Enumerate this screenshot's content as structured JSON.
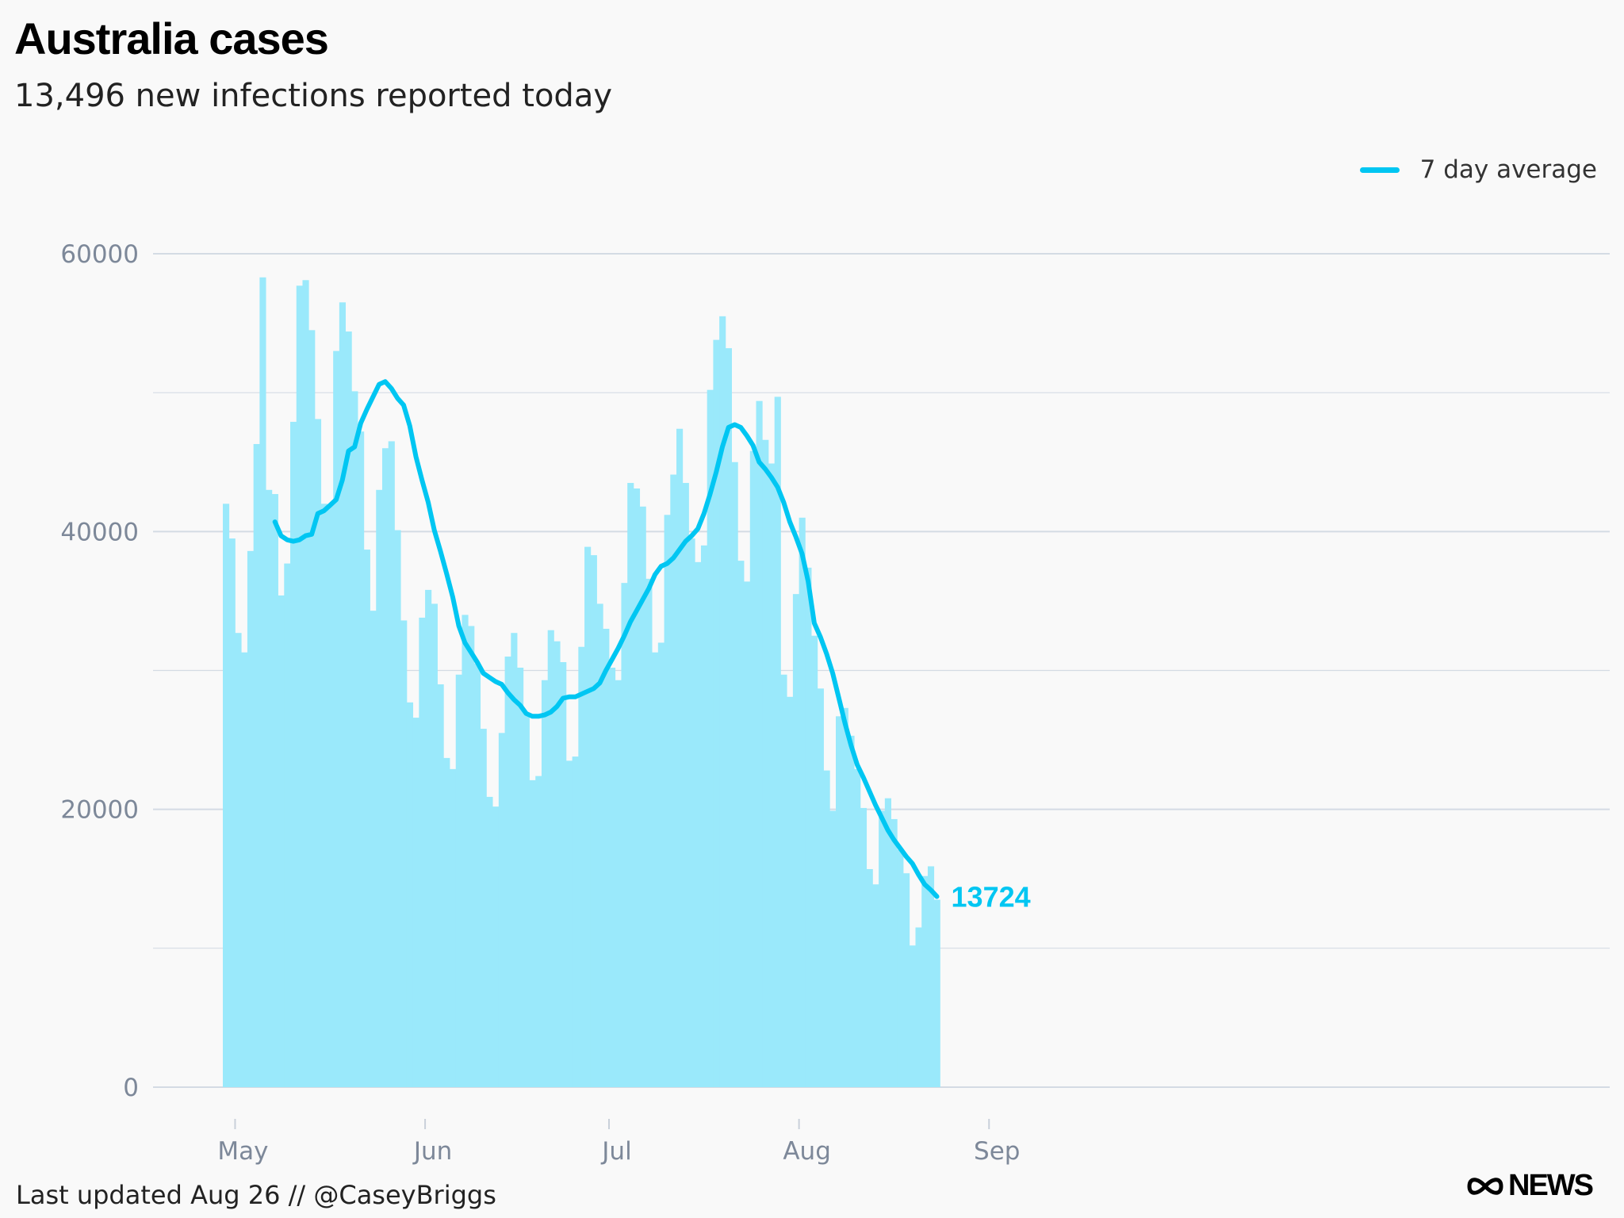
{
  "header": {
    "title": "Australia cases",
    "subtitle": "13,496 new infections reported today"
  },
  "legend": {
    "label": "7 day average",
    "placement": "top-right",
    "color": "#00c6f2"
  },
  "footer": {
    "text": "Last updated Aug 26 // @CaseyBriggs"
  },
  "logo": {
    "text": "NEWS",
    "icon": "abc-lissajous-icon"
  },
  "colors": {
    "bar": "#9ae9fb",
    "line": "#00c6f2",
    "grid": "#d4dbe4",
    "tick": "#7d8899"
  },
  "chart_data": {
    "type": "bar",
    "x_start": "2022-04-29",
    "ylim": [
      0,
      65000
    ],
    "yticks": [
      0,
      20000,
      40000,
      60000
    ],
    "grid": true,
    "x_ticks": [
      {
        "label": "May",
        "date": "2022-05-01"
      },
      {
        "label": "Jun",
        "date": "2022-06-01"
      },
      {
        "label": "Jul",
        "date": "2022-07-01"
      },
      {
        "label": "Aug",
        "date": "2022-08-01"
      },
      {
        "label": "Sep",
        "date": "2022-09-01"
      }
    ],
    "series": [
      {
        "name": "",
        "kind": "bar",
        "values": [
          42000,
          39500,
          32700,
          31300,
          38600,
          46300,
          58300,
          43000,
          42700,
          35400,
          37700,
          47900,
          57700,
          58100,
          54500,
          48100,
          42000,
          41900,
          53000,
          56500,
          54400,
          50100,
          47200,
          38700,
          34300,
          43000,
          46000,
          46500,
          40100,
          33600,
          27700,
          26600,
          33800,
          35800,
          34800,
          29000,
          23700,
          22900,
          29700,
          34000,
          33200,
          30500,
          25800,
          20900,
          20200,
          25500,
          31000,
          32700,
          30200,
          26900,
          22100,
          22400,
          29300,
          32900,
          32100,
          30600,
          23500,
          23800,
          31700,
          38900,
          38300,
          34800,
          33000,
          30200,
          29300,
          36300,
          43500,
          43100,
          41800,
          36600,
          31300,
          32000,
          41200,
          44100,
          47400,
          43500,
          39500,
          37800,
          39000,
          50200,
          53800,
          55500,
          53200,
          45000,
          37900,
          36400,
          45800,
          49400,
          46600,
          44900,
          49700,
          29700,
          28100,
          35500,
          41000,
          37400,
          32500,
          28700,
          22800,
          19900,
          26700,
          27300,
          25300,
          22900,
          20100,
          15700,
          14600,
          19900,
          20800,
          19300,
          17100,
          15400,
          10200,
          11500,
          15200,
          15900,
          13496
        ]
      },
      {
        "name": "7 day average",
        "kind": "line",
        "values": [
          40700,
          39700,
          39400,
          39300,
          39400,
          39700,
          39800,
          41300,
          41500,
          41900,
          42300,
          43700,
          45800,
          46100,
          47800,
          48800,
          49700,
          50600,
          50800,
          50300,
          49600,
          49100,
          47600,
          45400,
          43700,
          42100,
          40100,
          38600,
          37000,
          35300,
          33200,
          32000,
          31300,
          30600,
          29800,
          29500,
          29200,
          29000,
          28400,
          27900,
          27500,
          26900,
          26700,
          26700,
          26800,
          27000,
          27400,
          28000,
          28100,
          28100,
          28300,
          28500,
          28700,
          29100,
          30000,
          30800,
          31600,
          32500,
          33500,
          34300,
          35100,
          35900,
          36900,
          37500,
          37700,
          38100,
          38700,
          39300,
          39700,
          40200,
          41300,
          42700,
          44300,
          46100,
          47500,
          47700,
          47500,
          46900,
          46200,
          45000,
          44500,
          43900,
          43200,
          42100,
          40700,
          39600,
          38400,
          36400,
          33400,
          32400,
          31200,
          29800,
          28000,
          26200,
          24600,
          23200,
          22300,
          21300,
          20300,
          19400,
          18500,
          17800,
          17200,
          16600,
          16100,
          15300,
          14600,
          14200,
          13724
        ]
      }
    ],
    "annotations": [
      {
        "text": "13724",
        "series": "7 day average",
        "at": "last"
      }
    ]
  }
}
